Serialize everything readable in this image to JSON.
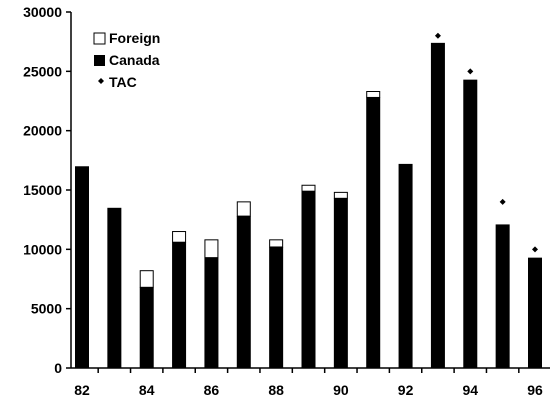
{
  "chart_data": {
    "type": "bar",
    "stacked": true,
    "x": [
      82,
      83,
      84,
      85,
      86,
      87,
      88,
      89,
      90,
      91,
      92,
      93,
      94,
      95,
      96
    ],
    "x_tick_labels": [
      "82",
      "84",
      "86",
      "88",
      "90",
      "92",
      "94",
      "96"
    ],
    "x_tick_values": [
      82,
      84,
      86,
      88,
      90,
      92,
      94,
      96
    ],
    "y_tick_labels": [
      "0",
      "5000",
      "10000",
      "15000",
      "20000",
      "25000",
      "30000"
    ],
    "ylim": [
      0,
      30000
    ],
    "series": [
      {
        "name": "Canada",
        "color": "#000000",
        "values": [
          17000,
          13500,
          6800,
          10600,
          9300,
          12800,
          10200,
          14900,
          14300,
          22800,
          17200,
          27400,
          24300,
          12100,
          9300
        ]
      },
      {
        "name": "Foreign",
        "color": "#ffffff",
        "values": [
          0,
          0,
          1400,
          900,
          1500,
          1200,
          600,
          500,
          500,
          500,
          0,
          0,
          0,
          0,
          0
        ]
      }
    ],
    "tac": {
      "name": "TAC",
      "x": [
        93,
        94,
        95,
        96
      ],
      "values": [
        28000,
        25000,
        14000,
        10000
      ]
    },
    "legend": {
      "position": "top-left",
      "items": [
        {
          "label": "Foreign",
          "swatch": "open-square"
        },
        {
          "label": "Canada",
          "swatch": "filled-square"
        },
        {
          "label": "TAC",
          "swatch": "diamond"
        }
      ]
    },
    "grid": false
  }
}
